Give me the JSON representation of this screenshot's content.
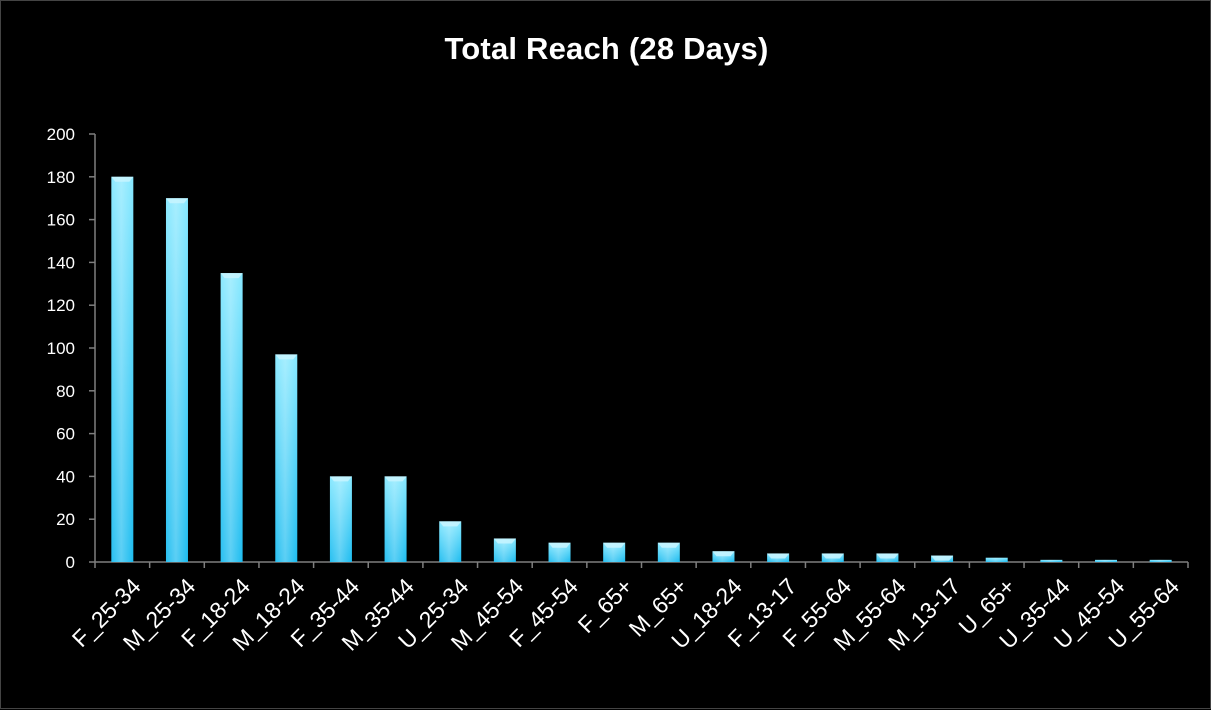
{
  "chart_data": {
    "type": "bar",
    "title": "Total Reach (28 Days)",
    "xlabel": "",
    "ylabel": "",
    "ylim": [
      0,
      200
    ],
    "yticks": [
      0,
      20,
      40,
      60,
      80,
      100,
      120,
      140,
      160,
      180,
      200
    ],
    "grid": false,
    "legend": "none",
    "categories": [
      "F_25-34",
      "M_25-34",
      "F_18-24",
      "M_18-24",
      "F_35-44",
      "M_35-44",
      "U_25-34",
      "M_45-54",
      "F_45-54",
      "F_65+",
      "M_65+",
      "U_18-24",
      "F_13-17",
      "F_55-64",
      "M_55-64",
      "M_13-17",
      "U_65+",
      "U_35-44",
      "U_45-54",
      "U_55-64"
    ],
    "values": [
      180,
      170,
      135,
      97,
      40,
      40,
      19,
      11,
      9,
      9,
      9,
      5,
      4,
      4,
      4,
      3,
      2,
      1,
      1,
      1
    ],
    "colors": {
      "background": "#000000",
      "bar_top": "#86e8ff",
      "bar_bottom": "#1cbcf0",
      "axis": "#7f7f7f",
      "text": "#ffffff"
    }
  }
}
